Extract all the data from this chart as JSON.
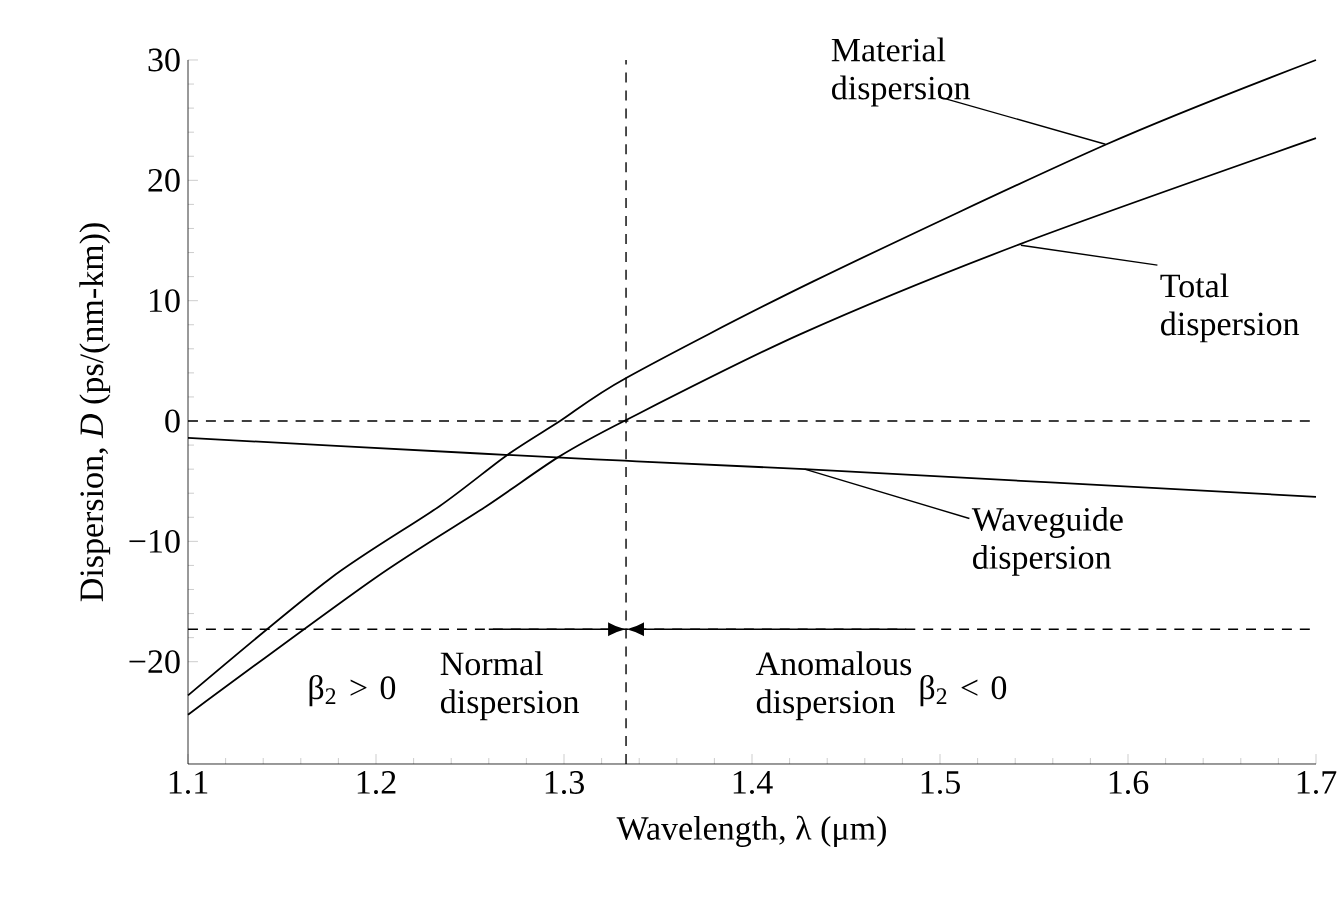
{
  "chart_data": {
    "type": "line",
    "xlabel": "Wavelength, λ (μm)",
    "ylabel": "Dispersion, *D* (ps/(nm-km))",
    "xlim": [
      1.1,
      1.7
    ],
    "ylim": [
      -28.5,
      30
    ],
    "xticks": [
      1.1,
      1.2,
      1.3,
      1.4,
      1.5,
      1.6,
      1.7
    ],
    "yticks": [
      {
        "value": -20,
        "label": "−20"
      },
      {
        "value": -10,
        "label": "−10"
      },
      0,
      10,
      20,
      30
    ],
    "legend": false,
    "marker": "none",
    "line_style": "solid",
    "series": [
      {
        "name": "Material dispersion",
        "color": "#000000",
        "x": [
          1.1,
          1.1755,
          1.2336,
          1.27,
          1.2979,
          1.3333,
          1.4326,
          1.5886,
          1.7
        ],
        "values": [
          -22.8,
          -13.1,
          -7.1,
          -2.8,
          0,
          3.6,
          11.6,
          23.0,
          30.0
        ]
      },
      {
        "name": "Total dispersion",
        "color": "#000000",
        "x": [
          1.1,
          1.199,
          1.2585,
          1.297,
          1.332,
          1.4255,
          1.5426,
          1.7
        ],
        "values": [
          -24.4,
          -13.1,
          -7.1,
          -3.0,
          0,
          7.2,
          14.7,
          23.5
        ]
      },
      {
        "name": "Waveguide dispersion",
        "color": "#000000",
        "x": [
          1.1,
          1.255,
          1.332,
          1.428,
          1.7
        ],
        "values": [
          -1.4,
          -2.7,
          -3.3,
          -4.0,
          -6.3
        ]
      }
    ],
    "ref_lines": [
      {
        "axis": "y",
        "value": 0,
        "line_style": "dashed",
        "color": "#000000"
      },
      {
        "axis": "x",
        "value": 1.333,
        "line_style": "dashed",
        "color": "#000000"
      },
      {
        "axis": "y",
        "value": -17.3,
        "line_style": "dashed",
        "color": "#000000"
      }
    ],
    "annotations": [
      "β$_{2}$ > 0",
      {
        "text": "Normal dispersion",
        "x": 1.333,
        "y": -17.3
      },
      {
        "text": "Anomalous dispersion",
        "x": 1.333,
        "y": -17.3
      },
      "β$_{2}$ < 0"
    ]
  }
}
